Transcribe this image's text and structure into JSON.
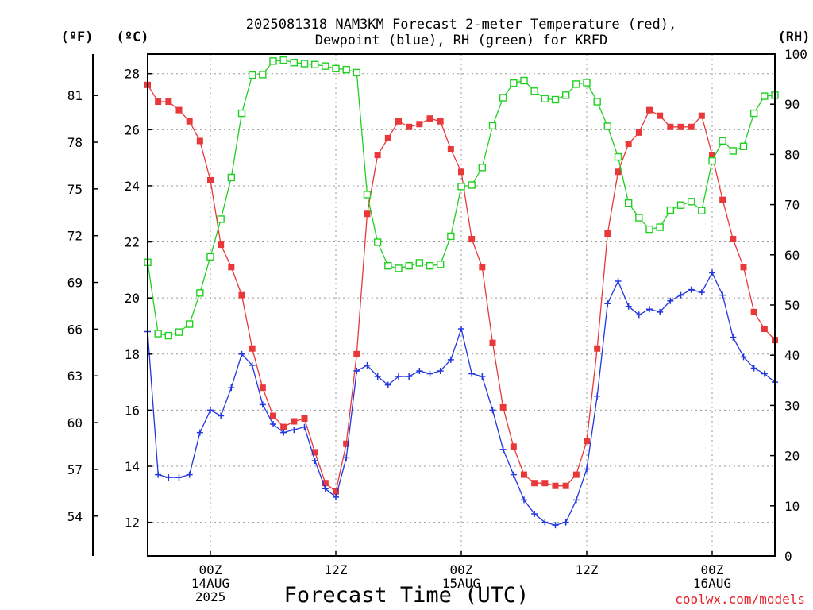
{
  "chart_data": {
    "type": "line",
    "title_line1": "2025081318 NAM3KM Forecast 2-meter Temperature (red),",
    "title_line2": "Dewpoint (blue), RH (green) for KRFD",
    "xlabel": "Forecast Time (UTC)",
    "credit": "coolwx.com/models",
    "unit_f": "(ºF)",
    "unit_c": "(ºC)",
    "unit_rh": "(RH)",
    "y_celsius": {
      "min": 10.8,
      "max": 28.7,
      "ticks": [
        12,
        14,
        16,
        18,
        20,
        22,
        24,
        26,
        28
      ]
    },
    "y_fahrenheit": {
      "ticks": [
        54,
        57,
        60,
        63,
        66,
        69,
        72,
        75,
        78,
        81
      ]
    },
    "y_rh": {
      "min": 0,
      "max": 100,
      "ticks": [
        0,
        10,
        20,
        30,
        40,
        50,
        60,
        70,
        80,
        90,
        100
      ]
    },
    "x_hours": {
      "min": 0,
      "max": 60
    },
    "x_ticks": [
      {
        "hour": 6,
        "lines": [
          "00Z",
          "14AUG",
          "2025"
        ]
      },
      {
        "hour": 18,
        "lines": [
          "12Z",
          "",
          ""
        ]
      },
      {
        "hour": 30,
        "lines": [
          "00Z",
          "15AUG",
          ""
        ]
      },
      {
        "hour": 42,
        "lines": [
          "12Z",
          "",
          ""
        ]
      },
      {
        "hour": 54,
        "lines": [
          "00Z",
          "16AUG",
          ""
        ]
      }
    ],
    "grid": true,
    "series": [
      {
        "name": "Temperature",
        "color": "#e8383a",
        "marker": "filled-square",
        "axis": "celsius",
        "values": [
          27.6,
          27.0,
          27.0,
          26.7,
          26.3,
          25.6,
          24.2,
          21.9,
          21.1,
          20.1,
          18.2,
          16.8,
          15.8,
          15.4,
          15.6,
          15.7,
          14.5,
          13.4,
          13.1,
          14.8,
          18.0,
          23.0,
          25.1,
          25.7,
          26.3,
          26.1,
          26.2,
          26.4,
          26.3,
          25.3,
          24.5,
          22.1,
          21.1,
          18.4,
          16.1,
          14.7,
          13.7,
          13.4,
          13.4,
          13.3,
          13.3,
          13.7,
          14.9,
          18.2,
          22.3,
          24.5,
          25.5,
          25.9,
          26.7,
          26.5,
          26.1,
          26.1,
          26.1,
          26.5,
          25.1,
          23.5,
          22.1,
          21.1,
          19.5,
          18.9,
          18.5
        ]
      },
      {
        "name": "Dewpoint",
        "color": "#2236e0",
        "marker": "plus",
        "axis": "celsius",
        "values": [
          18.8,
          13.7,
          13.6,
          13.6,
          13.7,
          15.2,
          16.0,
          15.8,
          16.8,
          18.0,
          17.6,
          16.2,
          15.5,
          15.2,
          15.3,
          15.4,
          14.2,
          13.2,
          12.9,
          14.3,
          17.4,
          17.6,
          17.2,
          16.9,
          17.2,
          17.2,
          17.4,
          17.3,
          17.4,
          17.8,
          18.9,
          17.3,
          17.2,
          16.0,
          14.6,
          13.7,
          12.8,
          12.3,
          12.0,
          11.9,
          12.0,
          12.8,
          13.9,
          16.5,
          19.8,
          20.6,
          19.7,
          19.4,
          19.6,
          19.5,
          19.9,
          20.1,
          20.3,
          20.2,
          20.9,
          20.1,
          18.6,
          17.9,
          17.5,
          17.3,
          17.0
        ]
      },
      {
        "name": "RH",
        "color": "#20d020",
        "marker": "open-square",
        "axis": "rh",
        "values": [
          58.5,
          44.3,
          43.9,
          44.6,
          46.2,
          52.4,
          59.6,
          67.1,
          75.4,
          88.2,
          95.8,
          95.9,
          98.6,
          98.8,
          98.3,
          98.1,
          97.9,
          97.6,
          97.1,
          96.9,
          96.3,
          72.0,
          62.5,
          57.8,
          57.3,
          57.8,
          58.4,
          57.8,
          58.1,
          63.7,
          73.6,
          73.9,
          77.4,
          85.7,
          91.3,
          94.2,
          94.7,
          92.6,
          91.1,
          90.9,
          91.8,
          94.0,
          94.3,
          90.5,
          85.6,
          79.5,
          70.3,
          67.4,
          65.1,
          65.5,
          68.9,
          69.9,
          70.6,
          68.8,
          78.7,
          82.7,
          80.7,
          81.6,
          88.2,
          91.6,
          91.8
        ]
      }
    ]
  }
}
